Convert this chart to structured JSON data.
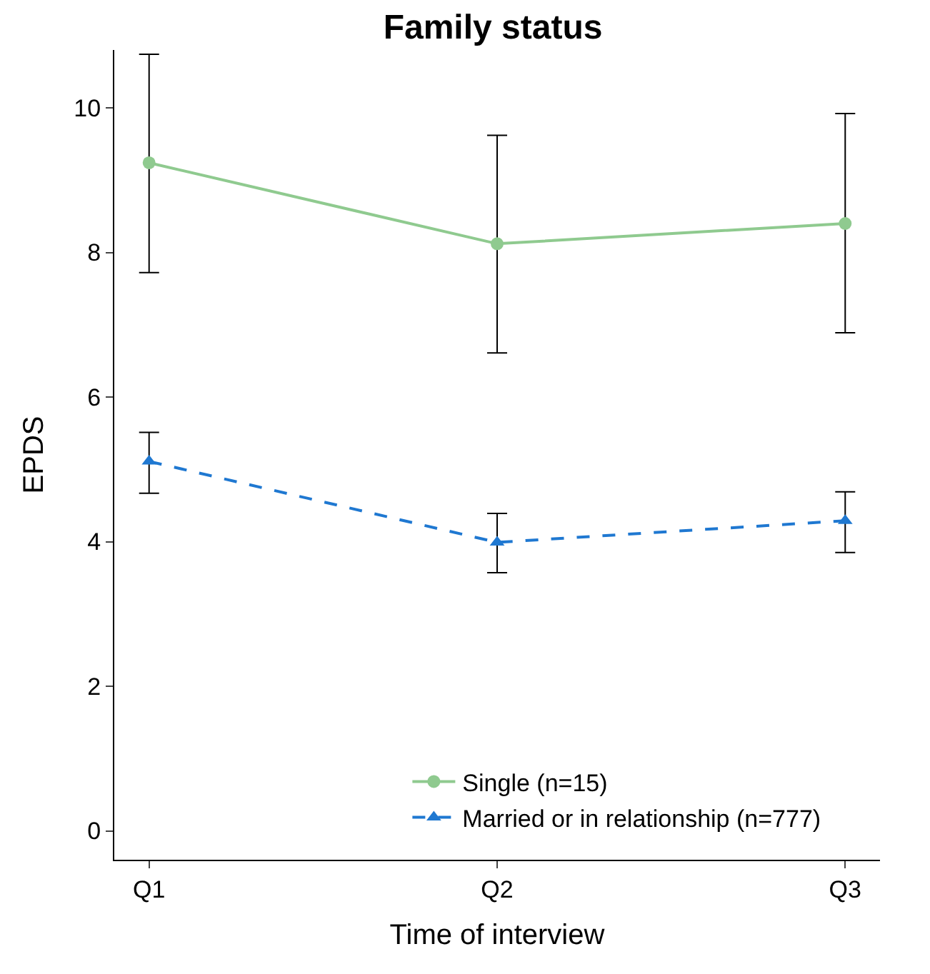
{
  "chart_data": {
    "type": "line",
    "title": "Family status",
    "xlabel": "Time of interview",
    "ylabel": "EPDS",
    "categories": [
      "Q1",
      "Q2",
      "Q3"
    ],
    "series": [
      {
        "name": "Single (n=15)",
        "color": "#8fca8f",
        "marker": "circle",
        "line_style": "solid",
        "values": [
          9.24,
          8.12,
          8.4
        ],
        "errors": [
          [
            7.72,
            10.74
          ],
          [
            6.61,
            9.62
          ],
          [
            6.89,
            9.92
          ]
        ]
      },
      {
        "name": "Married or in relationship (n=777)",
        "color": "#1f78d1",
        "marker": "triangle",
        "line_style": "dashed",
        "values": [
          5.11,
          3.99,
          4.29
        ],
        "errors": [
          [
            4.67,
            5.51
          ],
          [
            3.57,
            4.39
          ],
          [
            3.85,
            4.69
          ]
        ]
      }
    ],
    "ylim": [
      -0.4,
      10.8
    ],
    "yticks": [
      0,
      2,
      4,
      6,
      8,
      10
    ],
    "legend": "bottom"
  }
}
